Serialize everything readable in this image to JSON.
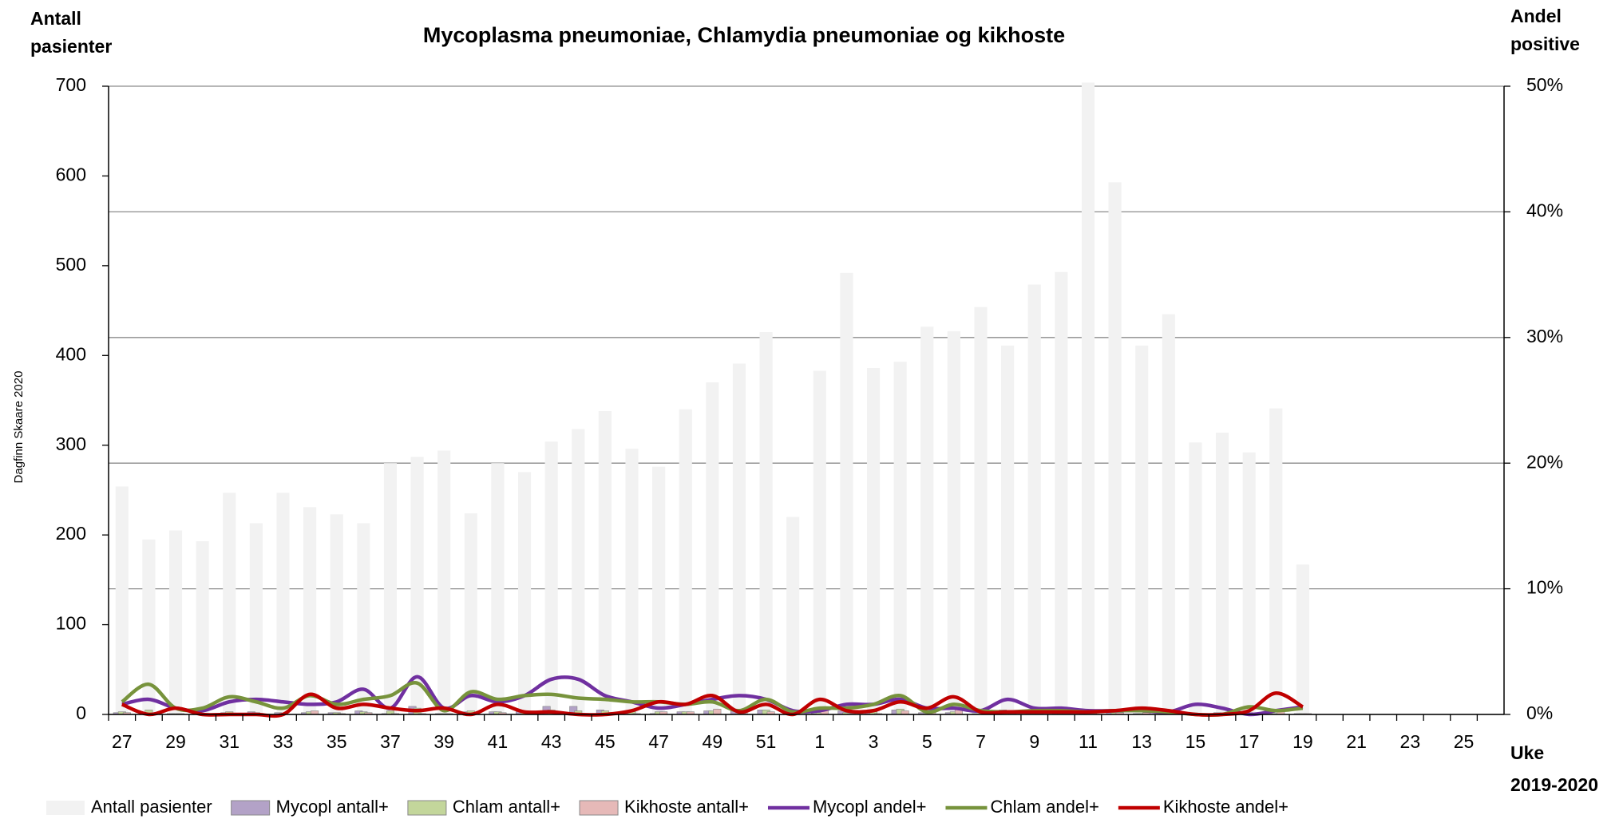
{
  "chart_data": {
    "type": "combo",
    "title": "Mycoplasma pneumoniae, Chlamydia pneumoniae og kikhoste",
    "y_label": [
      "Antall",
      "pasienter"
    ],
    "y2_label": [
      "Andel",
      "positive"
    ],
    "x_label": [
      "Uke",
      "2019-2020"
    ],
    "watermark": "Dagfinn Skaare 2020",
    "categories": [
      "27",
      null,
      "29",
      null,
      "31",
      null,
      "33",
      null,
      "35",
      null,
      "37",
      null,
      "39",
      null,
      "41",
      null,
      "43",
      null,
      "45",
      null,
      "47",
      null,
      "49",
      null,
      "51",
      null,
      "1",
      null,
      "3",
      null,
      "5",
      null,
      "7",
      null,
      "9",
      null,
      "11",
      null,
      "13",
      null,
      "15",
      null,
      "17",
      null,
      "19",
      null,
      "21",
      null,
      "23",
      null,
      "25",
      null
    ],
    "ylim": [
      0,
      700
    ],
    "yticks": [
      0,
      100,
      200,
      300,
      400,
      500,
      600,
      700
    ],
    "y2lim": [
      0,
      50
    ],
    "y2ticks": [
      {
        "value": 0,
        "label": "0%"
      },
      {
        "value": 10,
        "label": "10%"
      },
      {
        "value": 20,
        "label": "20%"
      },
      {
        "value": 30,
        "label": "30%"
      },
      {
        "value": 40,
        "label": "40%"
      },
      {
        "value": 50,
        "label": "50%"
      }
    ],
    "grid": true,
    "series": [
      {
        "name": "Antall pasienter",
        "kind": "bar",
        "color": "#f2f2f2",
        "values": [
          254,
          195,
          205,
          193,
          247,
          213,
          247,
          231,
          223,
          213,
          280,
          287,
          294,
          224,
          280,
          270,
          304,
          318,
          338,
          296,
          276,
          340,
          370,
          391,
          426,
          220,
          383,
          492,
          386,
          393,
          432,
          427,
          454,
          411,
          479,
          493,
          704,
          593,
          411,
          446,
          303,
          314,
          292,
          341,
          167,
          null,
          null,
          null,
          null,
          null,
          null,
          null
        ]
      },
      {
        "name": "Mycopl antall+",
        "kind": "bar",
        "color": "#b3a2c7",
        "values": [
          2,
          2,
          1,
          1,
          2,
          3,
          2,
          2,
          2,
          4,
          1,
          9,
          1,
          3,
          3,
          4,
          9,
          9,
          5,
          3,
          1,
          3,
          4,
          6,
          5,
          1,
          1,
          4,
          3,
          5,
          2,
          2,
          1,
          5,
          2,
          2,
          2,
          2,
          1,
          1,
          2,
          2,
          0,
          1,
          1,
          null,
          null,
          null,
          null,
          null,
          null,
          null
        ]
      },
      {
        "name": "Chlam antall+",
        "kind": "bar",
        "color": "#c3d69b",
        "values": [
          3,
          5,
          1,
          1,
          3,
          2,
          1,
          3,
          2,
          3,
          4,
          7,
          1,
          4,
          3,
          4,
          5,
          4,
          4,
          3,
          3,
          3,
          4,
          1,
          5,
          0,
          2,
          2,
          3,
          6,
          1,
          3,
          1,
          1,
          1,
          1,
          1,
          2,
          1,
          1,
          0,
          0,
          2,
          1,
          1,
          null,
          null,
          null,
          null,
          null,
          null,
          null
        ]
      },
      {
        "name": "Kikhoste antall+",
        "kind": "bar",
        "color": "#e6b9b8",
        "values": [
          2,
          0,
          1,
          0,
          0,
          0,
          0,
          4,
          1,
          2,
          1,
          1,
          1,
          0,
          2,
          1,
          1,
          0,
          0,
          1,
          3,
          3,
          6,
          1,
          3,
          0,
          5,
          1,
          1,
          4,
          2,
          6,
          1,
          1,
          1,
          1,
          1,
          2,
          2,
          1,
          0,
          0,
          1,
          6,
          1,
          null,
          null,
          null,
          null,
          null,
          null,
          null
        ]
      },
      {
        "name": "Mycopl andel+",
        "kind": "line",
        "axis": "y2",
        "color": "#7030a0",
        "values": [
          0.8,
          1.2,
          0.5,
          0.3,
          1.0,
          1.2,
          1.0,
          0.8,
          1.0,
          2.0,
          0.5,
          3.0,
          0.5,
          1.5,
          1.0,
          1.5,
          2.8,
          2.8,
          1.5,
          1.0,
          0.5,
          0.8,
          1.2,
          1.5,
          1.2,
          0.3,
          0.3,
          0.8,
          0.8,
          1.2,
          0.5,
          0.5,
          0.3,
          1.2,
          0.5,
          0.5,
          0.3,
          0.3,
          0.3,
          0.2,
          0.8,
          0.5,
          0,
          0.3,
          0.6,
          null,
          null,
          null,
          null,
          null,
          null,
          null
        ]
      },
      {
        "name": "Chlam andel+",
        "kind": "line",
        "axis": "y2",
        "color": "#77933c",
        "values": [
          1.0,
          2.4,
          0.5,
          0.5,
          1.4,
          1.0,
          0.5,
          1.5,
          0.8,
          1.2,
          1.5,
          2.5,
          0.3,
          1.8,
          1.2,
          1.5,
          1.6,
          1.3,
          1.2,
          1.0,
          1.0,
          0.8,
          1.0,
          0.3,
          1.2,
          0.2,
          0.5,
          0.5,
          0.8,
          1.5,
          0.2,
          0.8,
          0.3,
          0.2,
          0.3,
          0.3,
          0.2,
          0.3,
          0.3,
          0.2,
          0,
          0,
          0.6,
          0.3,
          0.5,
          null,
          null,
          null,
          null,
          null,
          null,
          null
        ]
      },
      {
        "name": "Kikhoste andel+",
        "kind": "line",
        "axis": "y2",
        "color": "#c00000",
        "values": [
          0.8,
          0,
          0.5,
          0,
          0,
          0,
          0,
          1.6,
          0.5,
          0.8,
          0.5,
          0.3,
          0.5,
          0,
          0.8,
          0.2,
          0.2,
          0,
          0,
          0.3,
          1.0,
          0.8,
          1.5,
          0.2,
          0.8,
          0,
          1.2,
          0.3,
          0.3,
          1.0,
          0.5,
          1.4,
          0.2,
          0.2,
          0.2,
          0.2,
          0.2,
          0.3,
          0.5,
          0.3,
          0,
          0,
          0.3,
          1.7,
          0.6,
          null,
          null,
          null,
          null,
          null,
          null,
          null
        ]
      }
    ]
  }
}
